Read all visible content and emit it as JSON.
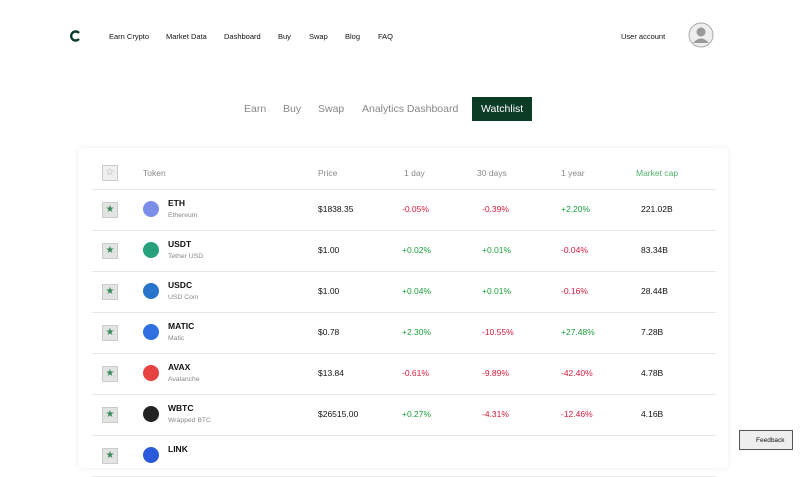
{
  "nav": {
    "links": [
      "Earn Crypto",
      "Market Data",
      "Dashboard",
      "Buy",
      "Swap",
      "Blog",
      "FAQ"
    ],
    "account": "User account"
  },
  "tabs": {
    "items": [
      "Earn",
      "Buy",
      "Swap",
      "Analytics Dashboard",
      "Watchlist"
    ],
    "active": 4
  },
  "table": {
    "columns": [
      "Token",
      "Price",
      "1 day",
      "30 days",
      "1 year",
      "Market cap"
    ],
    "rows": [
      {
        "symbol": "ETH",
        "name": "Ethereum",
        "price": "$1838.35",
        "day": "-0.05%",
        "month": "-0.39%",
        "year": "+2.20%",
        "cap": "221.02B",
        "color": "#7b8fe8"
      },
      {
        "symbol": "USDT",
        "name": "Tether USD",
        "price": "$1.00",
        "day": "+0.02%",
        "month": "+0.01%",
        "year": "-0.04%",
        "cap": "83.34B",
        "color": "#26a17b"
      },
      {
        "symbol": "USDC",
        "name": "USD Coin",
        "price": "$1.00",
        "day": "+0.04%",
        "month": "+0.01%",
        "year": "-0.16%",
        "cap": "28.44B",
        "color": "#2775ca"
      },
      {
        "symbol": "MATIC",
        "name": "Matic",
        "price": "$0.78",
        "day": "+2.30%",
        "month": "-10.55%",
        "year": "+27.48%",
        "cap": "7.28B",
        "color": "#2f6fe0"
      },
      {
        "symbol": "AVAX",
        "name": "Avalanche",
        "price": "$13.84",
        "day": "-0.61%",
        "month": "-9.89%",
        "year": "-42.40%",
        "cap": "4.78B",
        "color": "#e84142"
      },
      {
        "symbol": "WBTC",
        "name": "Wrapped BTC",
        "price": "$26515.00",
        "day": "+0.27%",
        "month": "-4.31%",
        "year": "-12.46%",
        "cap": "4.16B",
        "color": "#222222"
      },
      {
        "symbol": "LINK",
        "color": "#2a5ada"
      }
    ]
  },
  "feedback": "Feedback"
}
